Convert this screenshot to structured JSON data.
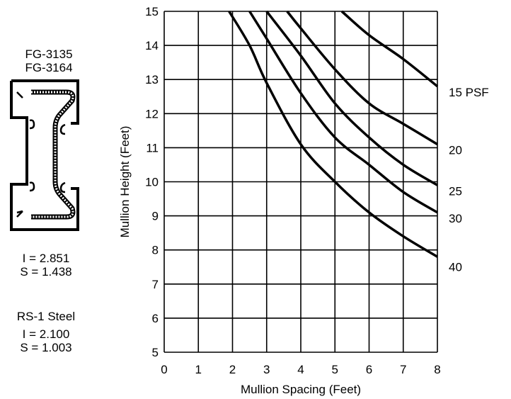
{
  "profile": {
    "model_line_1": "FG-3135",
    "model_line_2": "FG-3164",
    "aluminum_i": "I = 2.851",
    "aluminum_s": "S = 1.438",
    "steel_title": "RS-1 Steel",
    "steel_i": "I = 2.100",
    "steel_s": "S = 1.003"
  },
  "chart_data": {
    "type": "line",
    "title": "",
    "xlabel": "Mullion Spacing (Feet)",
    "ylabel": "Mullion Height (Feet)",
    "xlim": [
      0,
      8
    ],
    "ylim": [
      5,
      15
    ],
    "xticks": [
      "0",
      "1",
      "2",
      "3",
      "4",
      "5",
      "6",
      "7",
      "8"
    ],
    "yticks": [
      "5",
      "6",
      "7",
      "8",
      "9",
      "10",
      "11",
      "12",
      "13",
      "14",
      "15"
    ],
    "grid": true,
    "line_color": "#000000",
    "series": [
      {
        "name": "15 PSF",
        "x": [
          5.2,
          6,
          7,
          8
        ],
        "y": [
          15,
          14.3,
          13.6,
          12.8
        ]
      },
      {
        "name": "20",
        "x": [
          3.6,
          4,
          5,
          6,
          7,
          8
        ],
        "y": [
          15,
          14.5,
          13.3,
          12.3,
          11.7,
          11.1
        ]
      },
      {
        "name": "25",
        "x": [
          3.0,
          4,
          5,
          6,
          7,
          8
        ],
        "y": [
          15,
          13.7,
          12.3,
          11.3,
          10.5,
          9.9
        ]
      },
      {
        "name": "30",
        "x": [
          2.5,
          3,
          4,
          5,
          6,
          7,
          8
        ],
        "y": [
          15,
          14.2,
          12.6,
          11.3,
          10.5,
          9.7,
          9.1
        ]
      },
      {
        "name": "40",
        "x": [
          1.9,
          2.5,
          3,
          4,
          5,
          6,
          7,
          8
        ],
        "y": [
          15,
          14.0,
          12.9,
          11.1,
          10.0,
          9.1,
          8.4,
          7.8
        ]
      }
    ]
  }
}
